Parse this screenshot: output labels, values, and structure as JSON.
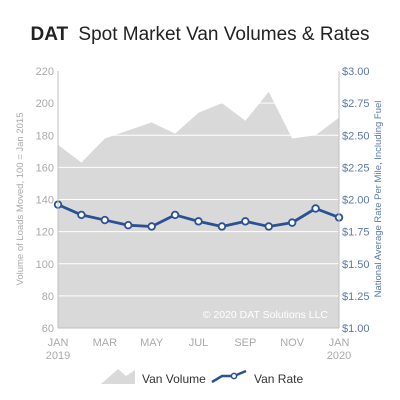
{
  "chart_data": {
    "type": "area+line",
    "title_brand": "DAT",
    "title_rest": "Spot Market Van Volumes & Rates",
    "ylabel_left": "Volume of Loads Moved, 100 = Jan 2015",
    "ylabel_right": "National Average Rate Per Mile, Including Fuel",
    "watermark": "© 2020 DAT Solutions LLC",
    "x_ticks": [
      {
        "i": 0,
        "top": "JAN",
        "bottom": "2019"
      },
      {
        "i": 2,
        "top": "MAR",
        "bottom": ""
      },
      {
        "i": 4,
        "top": "MAY",
        "bottom": ""
      },
      {
        "i": 6,
        "top": "JUL",
        "bottom": ""
      },
      {
        "i": 8,
        "top": "SEP",
        "bottom": ""
      },
      {
        "i": 10,
        "top": "NOV",
        "bottom": ""
      },
      {
        "i": 12,
        "top": "JAN",
        "bottom": "2020"
      }
    ],
    "ylim_left": [
      60,
      220
    ],
    "yticks_left": [
      60,
      80,
      100,
      120,
      140,
      160,
      180,
      200,
      220
    ],
    "ylim_right": [
      1.0,
      3.0
    ],
    "yticks_right": [
      "$1.00",
      "$1.25",
      "$1.50",
      "$1.75",
      "$2.00",
      "$2.25",
      "$2.50",
      "$2.75",
      "$3.00"
    ],
    "series": [
      {
        "name": "Van Volume",
        "kind": "area",
        "axis": "left",
        "x": [
          0,
          1,
          2,
          3,
          4,
          5,
          6,
          7,
          8,
          9,
          10,
          11,
          12
        ],
        "values": [
          174,
          163,
          178,
          183,
          188,
          181,
          194,
          200,
          189,
          207,
          178,
          180,
          191
        ],
        "color": "#d9d9d9"
      },
      {
        "name": "Van Rate",
        "kind": "line",
        "axis": "right",
        "x": [
          0,
          1,
          2,
          3,
          4,
          5,
          6,
          7,
          8,
          9,
          10,
          11,
          12
        ],
        "values": [
          1.96,
          1.88,
          1.84,
          1.8,
          1.79,
          1.88,
          1.83,
          1.79,
          1.83,
          1.79,
          1.82,
          1.93,
          1.86
        ],
        "color": "#2a5193"
      }
    ],
    "grid": true,
    "legend": "bottom",
    "colors": {
      "left_axis_text": "#aaaaaa",
      "right_axis_text": "#5b78a8",
      "grid": "#ffffff",
      "title": "#222222"
    }
  }
}
